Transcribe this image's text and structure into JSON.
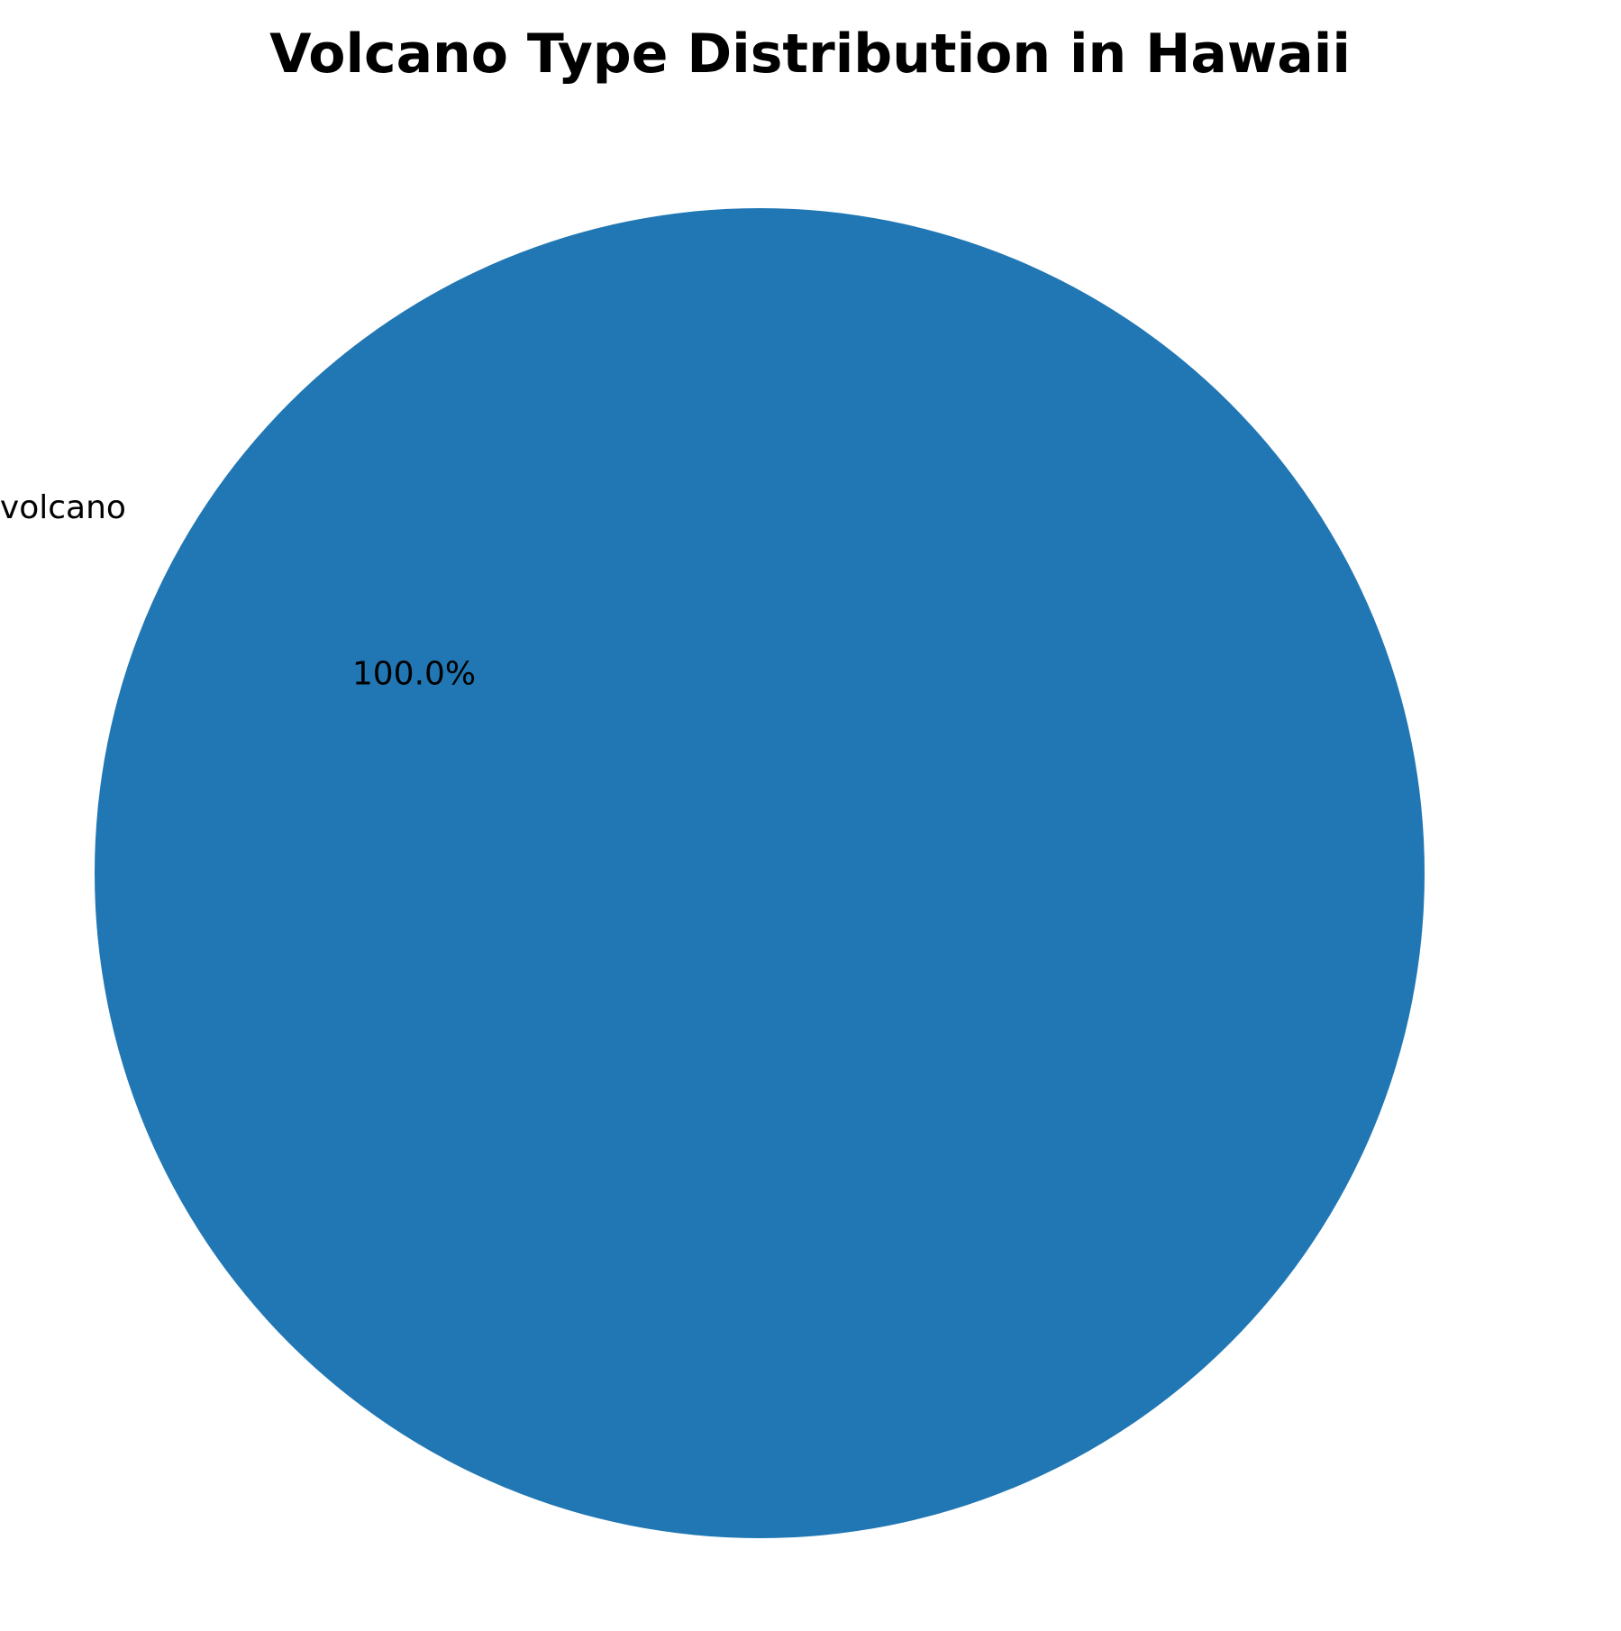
{
  "chart_data": {
    "type": "pie",
    "title": "Volcano Type Distribution in Hawaii",
    "slices": [
      {
        "label": "Shield volcano",
        "value": 100.0,
        "percent_label": "100.0%",
        "color": "#2077b4"
      }
    ]
  }
}
